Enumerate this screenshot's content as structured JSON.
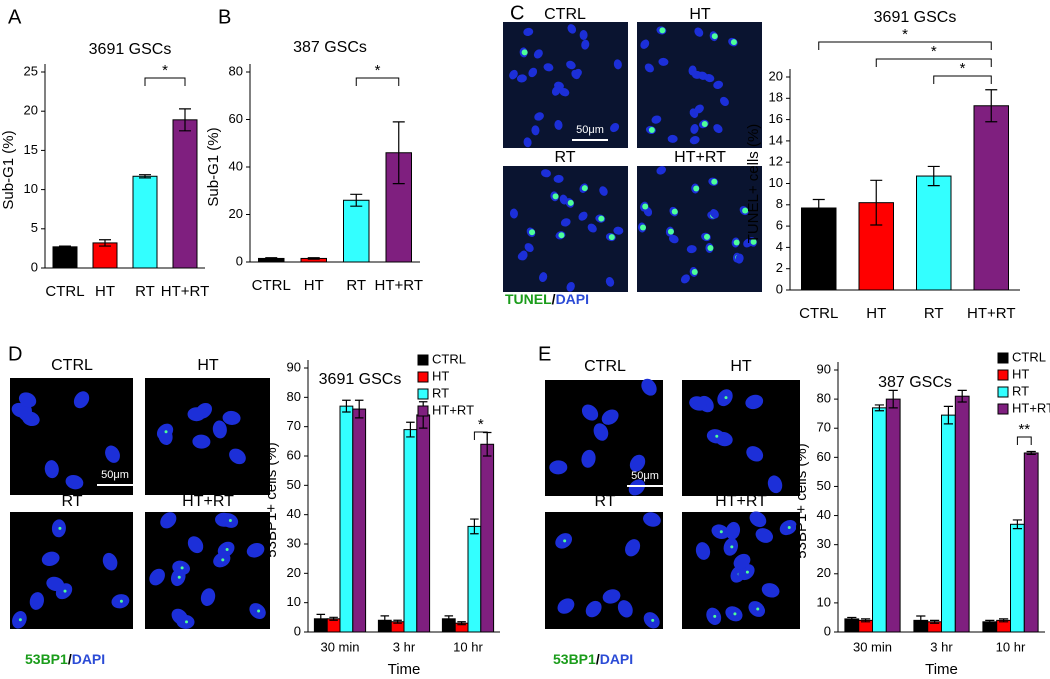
{
  "panels": {
    "letters": [
      "A",
      "B",
      "C",
      "D",
      "E"
    ]
  },
  "images": [
    {
      "labels": [
        "CTRL",
        "HT",
        "RT",
        "HT+RT"
      ],
      "scale": "50μm",
      "stain": [
        "TUNEL",
        "/",
        "DAPI"
      ]
    },
    {
      "labels": [
        "CTRL",
        "HT",
        "RT",
        "HT+RT"
      ],
      "scale": "50μm",
      "stain": [
        "53BP1",
        "/",
        "DAPI"
      ]
    },
    {
      "labels": [
        "CTRL",
        "HT",
        "RT",
        "HT+RT"
      ],
      "scale": "50μm",
      "stain": [
        "53BP1",
        "/",
        "DAPI"
      ]
    }
  ],
  "chart_data": [
    {
      "type": "bar",
      "title": "3691 GSCs",
      "y_label": "Sub-G1 (%)",
      "categories": [
        "CTRL",
        "HT",
        "RT",
        "HT+RT"
      ],
      "values": [
        2.7,
        3.2,
        11.7,
        18.9
      ],
      "errors": [
        0.1,
        0.4,
        0.2,
        1.4
      ],
      "colors": [
        "#000000",
        "#ff0000",
        "#33ffff",
        "#7f1f7f"
      ],
      "ylim": [
        0,
        25
      ],
      "yticks": [
        0,
        5,
        10,
        15,
        20,
        25
      ],
      "annotations": [
        "*"
      ]
    },
    {
      "type": "bar",
      "title": "387 GSCs",
      "y_label": "Sub-G1 (%)",
      "categories": [
        "CTRL",
        "HT",
        "RT",
        "HT+RT"
      ],
      "values": [
        1.5,
        1.5,
        26,
        46
      ],
      "errors": [
        0.3,
        0.3,
        2.5,
        13
      ],
      "colors": [
        "#000000",
        "#ff0000",
        "#33ffff",
        "#7f1f7f"
      ],
      "ylim": [
        0,
        80
      ],
      "yticks": [
        0,
        20,
        40,
        60,
        80
      ],
      "annotations": [
        "*"
      ]
    },
    {
      "type": "bar",
      "title": "3691 GSCs",
      "y_label": "TUNEL+ cells (%)",
      "categories": [
        "CTRL",
        "HT",
        "RT",
        "HT+RT"
      ],
      "values": [
        7.7,
        8.2,
        10.7,
        17.3
      ],
      "errors": [
        0.8,
        2.1,
        0.9,
        1.5
      ],
      "colors": [
        "#000000",
        "#ff0000",
        "#33ffff",
        "#7f1f7f"
      ],
      "ylim": [
        0,
        20
      ],
      "yticks": [
        0,
        2,
        4,
        6,
        8,
        10,
        12,
        14,
        16,
        18,
        20
      ],
      "annotations": [
        "*",
        "*",
        "*"
      ]
    },
    {
      "type": "bar",
      "title": "3691 GSCs",
      "y_label": "53BP1+ cells (%)",
      "x_label": "Time",
      "categories": [
        "30 min",
        "3 hr",
        "10 hr"
      ],
      "series": [
        {
          "name": "CTRL",
          "color": "#000000",
          "values": [
            4.5,
            4,
            4.5
          ],
          "errors": [
            1.5,
            1.5,
            1
          ]
        },
        {
          "name": "HT",
          "color": "#ff0000",
          "values": [
            4.5,
            3.5,
            3
          ],
          "errors": [
            0.5,
            0.5,
            0.5
          ]
        },
        {
          "name": "RT",
          "color": "#33ffff",
          "values": [
            77,
            69,
            36
          ],
          "errors": [
            2,
            2.5,
            2.5
          ]
        },
        {
          "name": "HT+RT",
          "color": "#7f1f7f",
          "values": [
            76,
            74,
            64
          ],
          "errors": [
            3,
            4.5,
            4
          ]
        }
      ],
      "ylim": [
        0,
        90
      ],
      "yticks": [
        0,
        10,
        20,
        30,
        40,
        50,
        60,
        70,
        80,
        90
      ],
      "annotations": [
        "*"
      ]
    },
    {
      "type": "bar",
      "title": "387 GSCs",
      "y_label": "53BP1+ cells (%)",
      "x_label": "Time",
      "categories": [
        "30 min",
        "3 hr",
        "10 hr"
      ],
      "series": [
        {
          "name": "CTRL",
          "color": "#000000",
          "values": [
            4.5,
            4,
            3.5
          ],
          "errors": [
            0.5,
            1.5,
            0.5
          ]
        },
        {
          "name": "HT",
          "color": "#ff0000",
          "values": [
            4,
            3.5,
            4
          ],
          "errors": [
            0.5,
            0.5,
            0.5
          ]
        },
        {
          "name": "RT",
          "color": "#33ffff",
          "values": [
            77,
            74.5,
            37
          ],
          "errors": [
            1,
            3,
            1.5
          ]
        },
        {
          "name": "HT+RT",
          "color": "#7f1f7f",
          "values": [
            80,
            81,
            61.5
          ],
          "errors": [
            3,
            2,
            0.5
          ]
        }
      ],
      "ylim": [
        0,
        90
      ],
      "yticks": [
        0,
        10,
        20,
        30,
        40,
        50,
        60,
        70,
        80,
        90
      ],
      "annotations": [
        "**"
      ]
    }
  ]
}
